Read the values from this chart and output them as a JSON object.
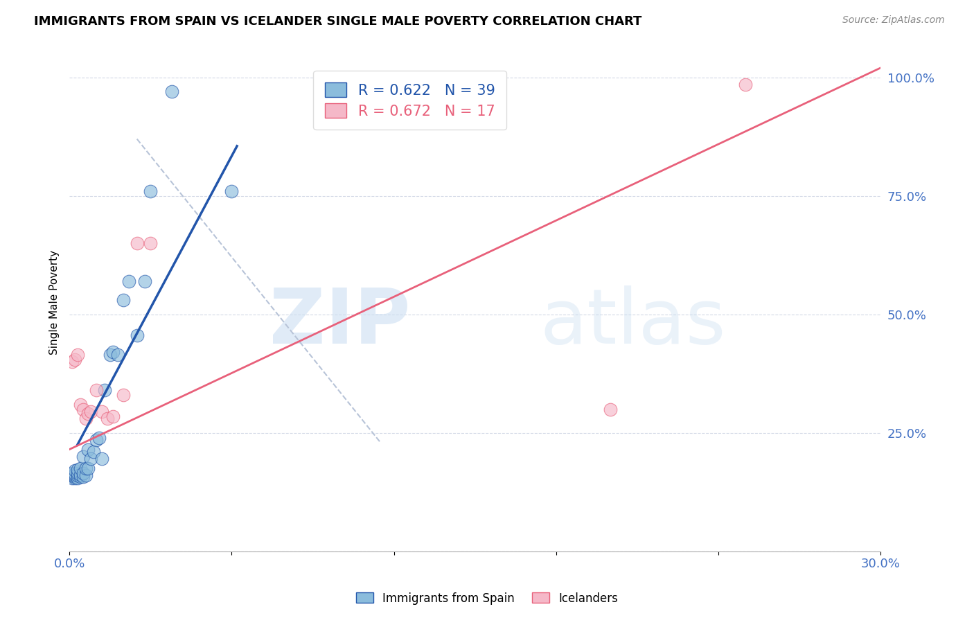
{
  "title": "IMMIGRANTS FROM SPAIN VS ICELANDER SINGLE MALE POVERTY CORRELATION CHART",
  "source": "Source: ZipAtlas.com",
  "ylabel": "Single Male Poverty",
  "xlim": [
    0.0,
    0.3
  ],
  "ylim": [
    0.0,
    1.05
  ],
  "blue_scatter_x": [
    0.001,
    0.001,
    0.001,
    0.001,
    0.002,
    0.002,
    0.002,
    0.002,
    0.002,
    0.003,
    0.003,
    0.003,
    0.003,
    0.004,
    0.004,
    0.004,
    0.005,
    0.005,
    0.005,
    0.006,
    0.006,
    0.007,
    0.007,
    0.008,
    0.009,
    0.01,
    0.011,
    0.012,
    0.013,
    0.015,
    0.016,
    0.018,
    0.02,
    0.022,
    0.025,
    0.028,
    0.03,
    0.038,
    0.06
  ],
  "blue_scatter_y": [
    0.155,
    0.16,
    0.162,
    0.165,
    0.155,
    0.158,
    0.16,
    0.163,
    0.17,
    0.155,
    0.16,
    0.165,
    0.172,
    0.158,
    0.162,
    0.175,
    0.158,
    0.165,
    0.2,
    0.16,
    0.175,
    0.175,
    0.215,
    0.195,
    0.21,
    0.235,
    0.24,
    0.195,
    0.34,
    0.415,
    0.42,
    0.415,
    0.53,
    0.57,
    0.455,
    0.57,
    0.76,
    0.97,
    0.76
  ],
  "pink_scatter_x": [
    0.001,
    0.002,
    0.003,
    0.004,
    0.005,
    0.006,
    0.007,
    0.008,
    0.01,
    0.012,
    0.014,
    0.016,
    0.02,
    0.025,
    0.03,
    0.2,
    0.25
  ],
  "pink_scatter_y": [
    0.4,
    0.405,
    0.415,
    0.31,
    0.3,
    0.28,
    0.29,
    0.295,
    0.34,
    0.295,
    0.28,
    0.285,
    0.33,
    0.65,
    0.65,
    0.3,
    0.985
  ],
  "blue_line_x": [
    0.003,
    0.062
  ],
  "blue_line_y": [
    0.225,
    0.855
  ],
  "pink_line_x": [
    0.0,
    0.3
  ],
  "pink_line_y": [
    0.215,
    1.02
  ],
  "dashed_line_x": [
    0.025,
    0.115
  ],
  "dashed_line_y": [
    0.87,
    0.23
  ],
  "watermark_zip": "ZIP",
  "watermark_atlas": "atlas",
  "blue_color": "#8bbcdc",
  "pink_color": "#f5b8c8",
  "blue_line_color": "#2255aa",
  "pink_line_color": "#e8607a",
  "dashed_color": "#b8c4d8",
  "ytick_color": "#4472c4",
  "xtick_color": "#4472c4"
}
